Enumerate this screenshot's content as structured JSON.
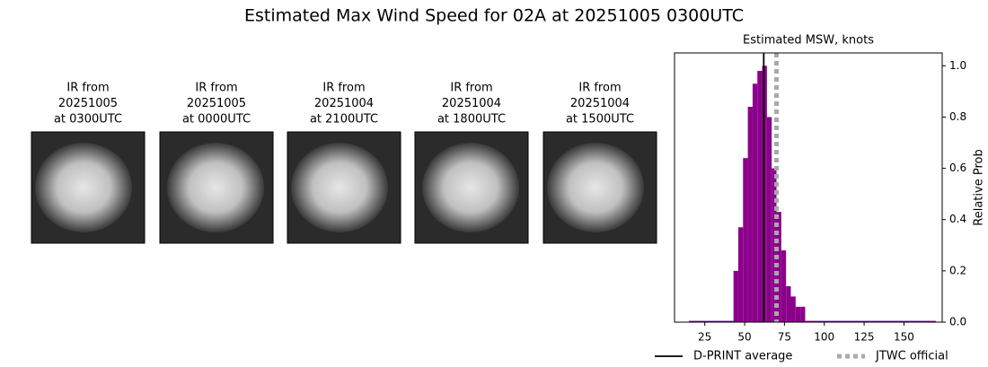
{
  "title": "Estimated Max Wind Speed for 02A at 20251005 0300UTC",
  "panels": [
    {
      "lines": [
        "IR from",
        "20251005",
        "at 0300UTC"
      ]
    },
    {
      "lines": [
        "IR from",
        "20251005",
        "at 0000UTC"
      ]
    },
    {
      "lines": [
        "IR from",
        "20251004",
        "at 2100UTC"
      ]
    },
    {
      "lines": [
        "IR from",
        "20251004",
        "at 1800UTC"
      ]
    },
    {
      "lines": [
        "IR from",
        "20251004",
        "at 1500UTC"
      ]
    }
  ],
  "chart_data": {
    "type": "histogram",
    "title": "Estimated MSW, knots",
    "y_label": "Relative Prob",
    "color": "#8b008b",
    "bins": [
      15,
      43,
      46,
      49,
      52,
      55,
      58,
      61,
      64,
      67,
      70,
      73,
      76,
      79,
      82,
      85,
      88,
      170
    ],
    "values": [
      0.005,
      0.2,
      0.37,
      0.64,
      0.84,
      0.93,
      0.98,
      1.0,
      0.8,
      0.6,
      0.43,
      0.28,
      0.14,
      0.1,
      0.06,
      0.06,
      0.005
    ],
    "xlim": [
      6,
      174
    ],
    "xticks": [
      25,
      50,
      75,
      100,
      125,
      150
    ],
    "ylim": [
      0,
      1.05
    ],
    "yticks": [
      {
        "value": 0,
        "label": "0.0"
      },
      0.2,
      0.4,
      0.6,
      0.8,
      {
        "value": 1,
        "label": "1.0"
      }
    ],
    "reference_lines": [
      {
        "name": "D-PRINT average",
        "value": 62,
        "color": "#000000",
        "style": "solid"
      },
      {
        "name": "JTWC official",
        "value": 70,
        "color": "#a9a9a9",
        "style": "dotted"
      }
    ]
  }
}
